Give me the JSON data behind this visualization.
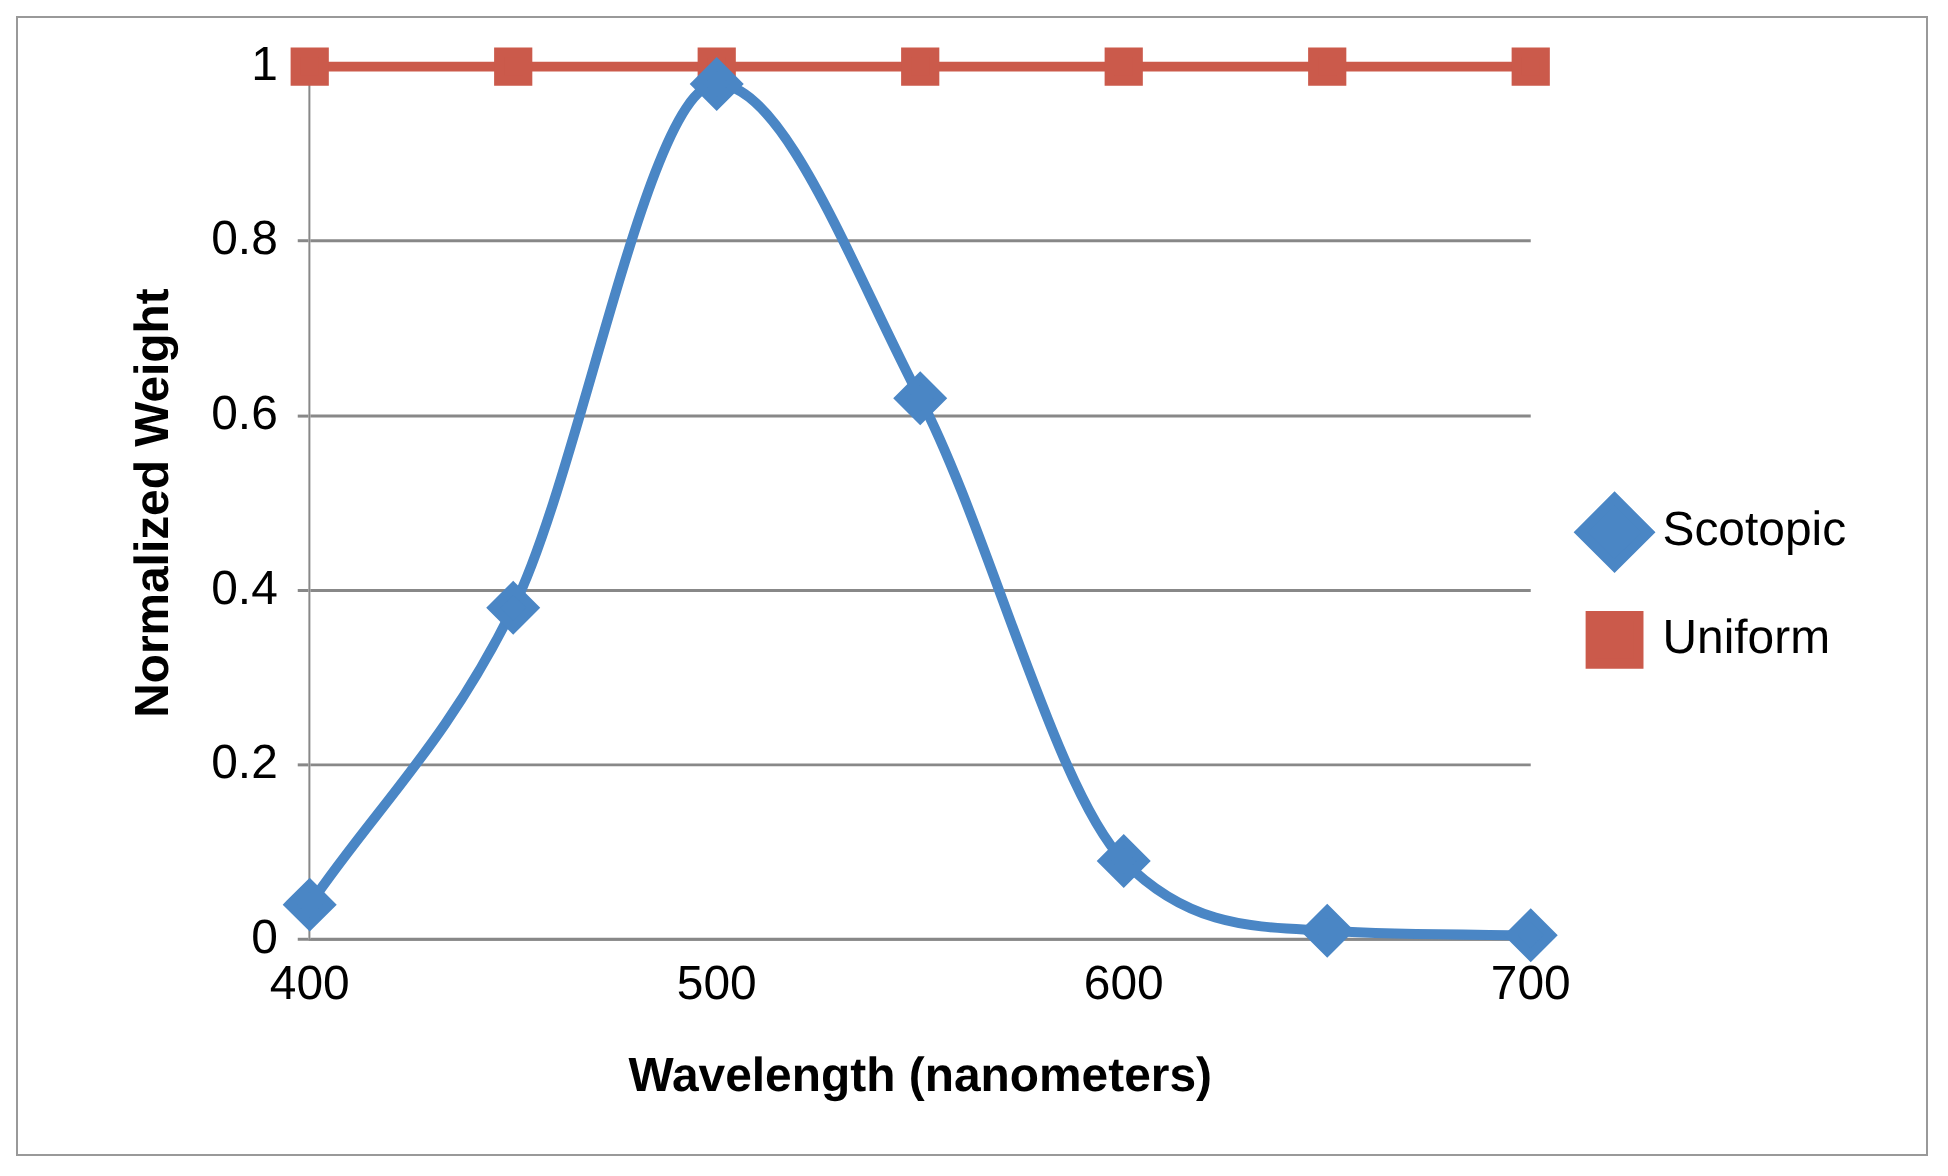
{
  "chart_data": {
    "type": "line",
    "xlabel": "Wavelength (nanometers)",
    "ylabel": "Normalized Weight",
    "x": [
      400,
      450,
      500,
      550,
      600,
      650,
      700
    ],
    "series": [
      {
        "name": "Scotopic",
        "color": "#4a86c5",
        "marker": "diamond",
        "values": [
          0.04,
          0.38,
          0.98,
          0.62,
          0.09,
          0.01,
          0.005
        ]
      },
      {
        "name": "Uniform",
        "color": "#cb5a4b",
        "marker": "square",
        "values": [
          1,
          1,
          1,
          1,
          1,
          1,
          1
        ]
      }
    ],
    "xlim": [
      400,
      700
    ],
    "xticks": [
      400,
      500,
      600,
      700
    ],
    "ylim": [
      0,
      1
    ],
    "yticks": [
      0,
      0.2,
      0.4,
      0.6,
      0.8,
      1
    ],
    "grid": "y",
    "legend": "right"
  }
}
